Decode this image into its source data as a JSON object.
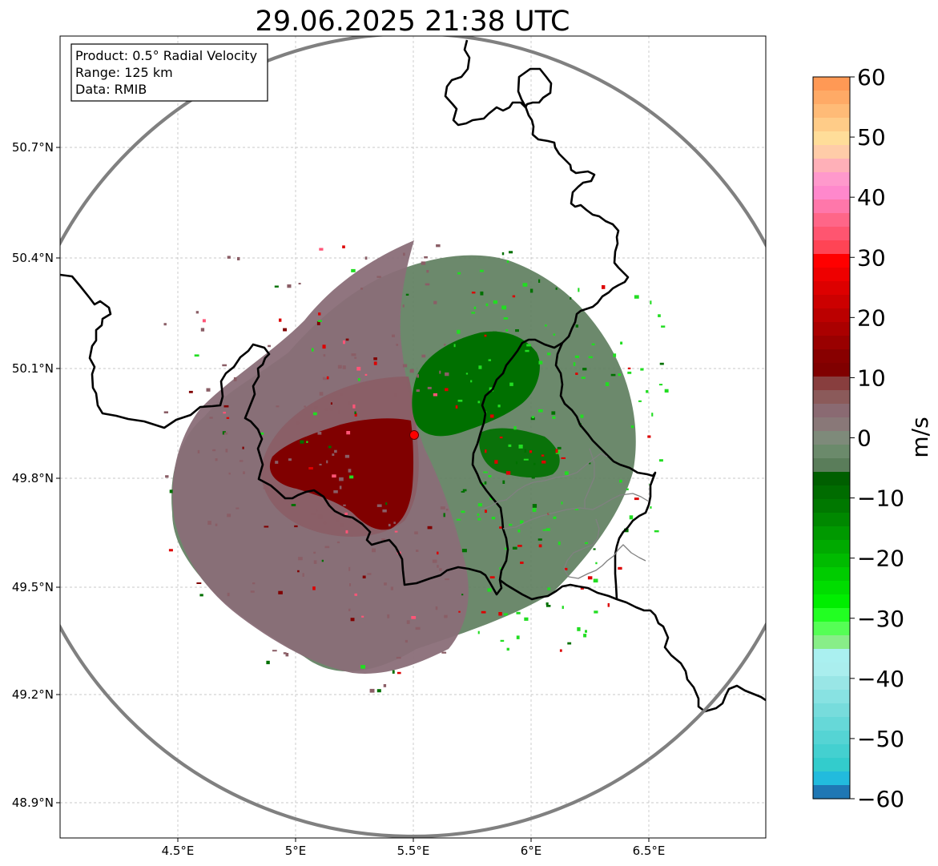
{
  "title": "29.06.2025 21:38 UTC",
  "info_box": {
    "product": "Product: 0.5° Radial Velocity",
    "range": "Range: 125 km",
    "data": "Data: RMIB"
  },
  "axes": {
    "lat_ticks": [
      "50.7°N",
      "50.4°N",
      "50.1°N",
      "49.8°N",
      "49.5°N",
      "49.2°N",
      "48.9°N"
    ],
    "lon_ticks": [
      "4.5°E",
      "5°E",
      "5.5°E",
      "6°E",
      "6.5°E"
    ]
  },
  "colorbar": {
    "label": "m/s",
    "ticks": [
      "60",
      "50",
      "40",
      "30",
      "20",
      "10",
      "0",
      "−10",
      "−20",
      "−30",
      "−40",
      "−50",
      "−60"
    ],
    "colors": [
      "#ff9955",
      "#ffaa66",
      "#ffbb77",
      "#ffcc88",
      "#ffdd99",
      "#ffcca8",
      "#ffb0b8",
      "#ff99cc",
      "#ff88cc",
      "#ff77aa",
      "#ff6688",
      "#ff5570",
      "#ff4455",
      "#ff0000",
      "#ee0000",
      "#dd0000",
      "#cc0000",
      "#bb0000",
      "#aa0000",
      "#990000",
      "#880000",
      "#800000",
      "#883e3e",
      "#8b5a5a",
      "#8a6a72",
      "#897878",
      "#7e8a7a",
      "#6b8a6b",
      "#5a7d5a",
      "#005f00",
      "#006c00",
      "#007800",
      "#008800",
      "#009900",
      "#00aa00",
      "#00bb00",
      "#00cc00",
      "#00dd00",
      "#00ee00",
      "#22ff22",
      "#55ff55",
      "#88ee88",
      "#aaf0f0",
      "#aaeeee",
      "#99e6e6",
      "#88e2e2",
      "#77dcdc",
      "#66d8d8",
      "#55d4d4",
      "#44d0d0",
      "#33cccc",
      "#22bbdd",
      "#1f77b4"
    ]
  },
  "radar": {
    "site_color": "#ff0000",
    "range_ring_color": "#808080",
    "colors": {
      "outbound_dark": "#800000",
      "outbound_mid": "#8a5e66",
      "outbound_light": "#8a6e78",
      "inbound_dark": "#007000",
      "inbound_mid": "#5f7f5f",
      "speckle_red": "#dd0000",
      "speckle_green": "#22dd22",
      "speckle_pink": "#ff5577"
    }
  }
}
